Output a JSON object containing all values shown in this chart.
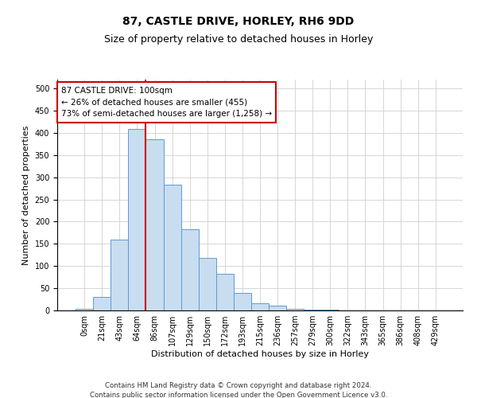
{
  "title": "87, CASTLE DRIVE, HORLEY, RH6 9DD",
  "subtitle": "Size of property relative to detached houses in Horley",
  "xlabel": "Distribution of detached houses by size in Horley",
  "ylabel": "Number of detached properties",
  "footer_line1": "Contains HM Land Registry data © Crown copyright and database right 2024.",
  "footer_line2": "Contains public sector information licensed under the Open Government Licence v3.0.",
  "annotation_line1": "87 CASTLE DRIVE: 100sqm",
  "annotation_line2": "← 26% of detached houses are smaller (455)",
  "annotation_line3": "73% of semi-detached houses are larger (1,258) →",
  "bar_color": "#c8ddf0",
  "bar_edge_color": "#5b9bd5",
  "vline_color": "#cc0000",
  "vline_x_idx": 4,
  "categories": [
    "0sqm",
    "21sqm",
    "43sqm",
    "64sqm",
    "86sqm",
    "107sqm",
    "129sqm",
    "150sqm",
    "172sqm",
    "193sqm",
    "215sqm",
    "236sqm",
    "257sqm",
    "279sqm",
    "300sqm",
    "322sqm",
    "343sqm",
    "365sqm",
    "386sqm",
    "408sqm",
    "429sqm"
  ],
  "values": [
    3,
    30,
    160,
    408,
    385,
    283,
    183,
    118,
    83,
    40,
    17,
    10,
    4,
    2,
    1,
    0,
    0,
    0,
    0,
    0,
    0
  ],
  "ylim": [
    0,
    520
  ],
  "yticks": [
    0,
    50,
    100,
    150,
    200,
    250,
    300,
    350,
    400,
    450,
    500
  ],
  "grid_color": "#d0d0d0",
  "annotation_box_facecolor": "#ffffff",
  "annotation_box_edgecolor": "#cc0000",
  "figsize": [
    6.0,
    5.0
  ],
  "dpi": 100,
  "title_fontsize": 10,
  "subtitle_fontsize": 9,
  "ylabel_fontsize": 8,
  "xlabel_fontsize": 8,
  "tick_fontsize": 7,
  "annotation_fontsize": 7.5
}
